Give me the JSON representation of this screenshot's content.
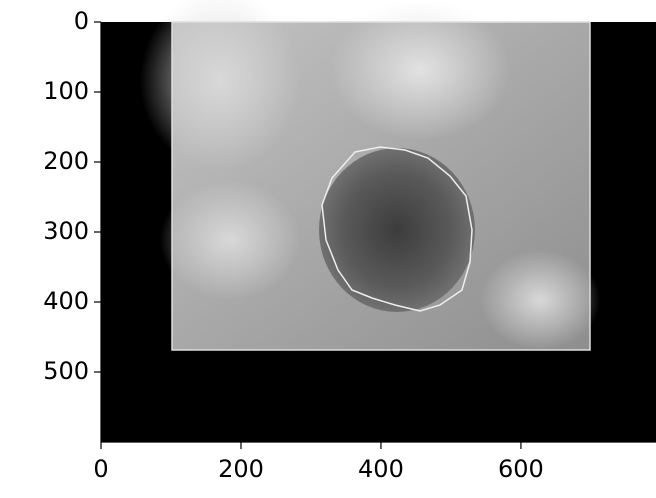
{
  "chart_data": {
    "type": "image",
    "xlim": [
      0,
      793
    ],
    "xticks": [
      0,
      200,
      400,
      600
    ],
    "ylim": [
      600,
      0
    ],
    "yticks": [
      0,
      100,
      200,
      300,
      400,
      500
    ]
  }
}
